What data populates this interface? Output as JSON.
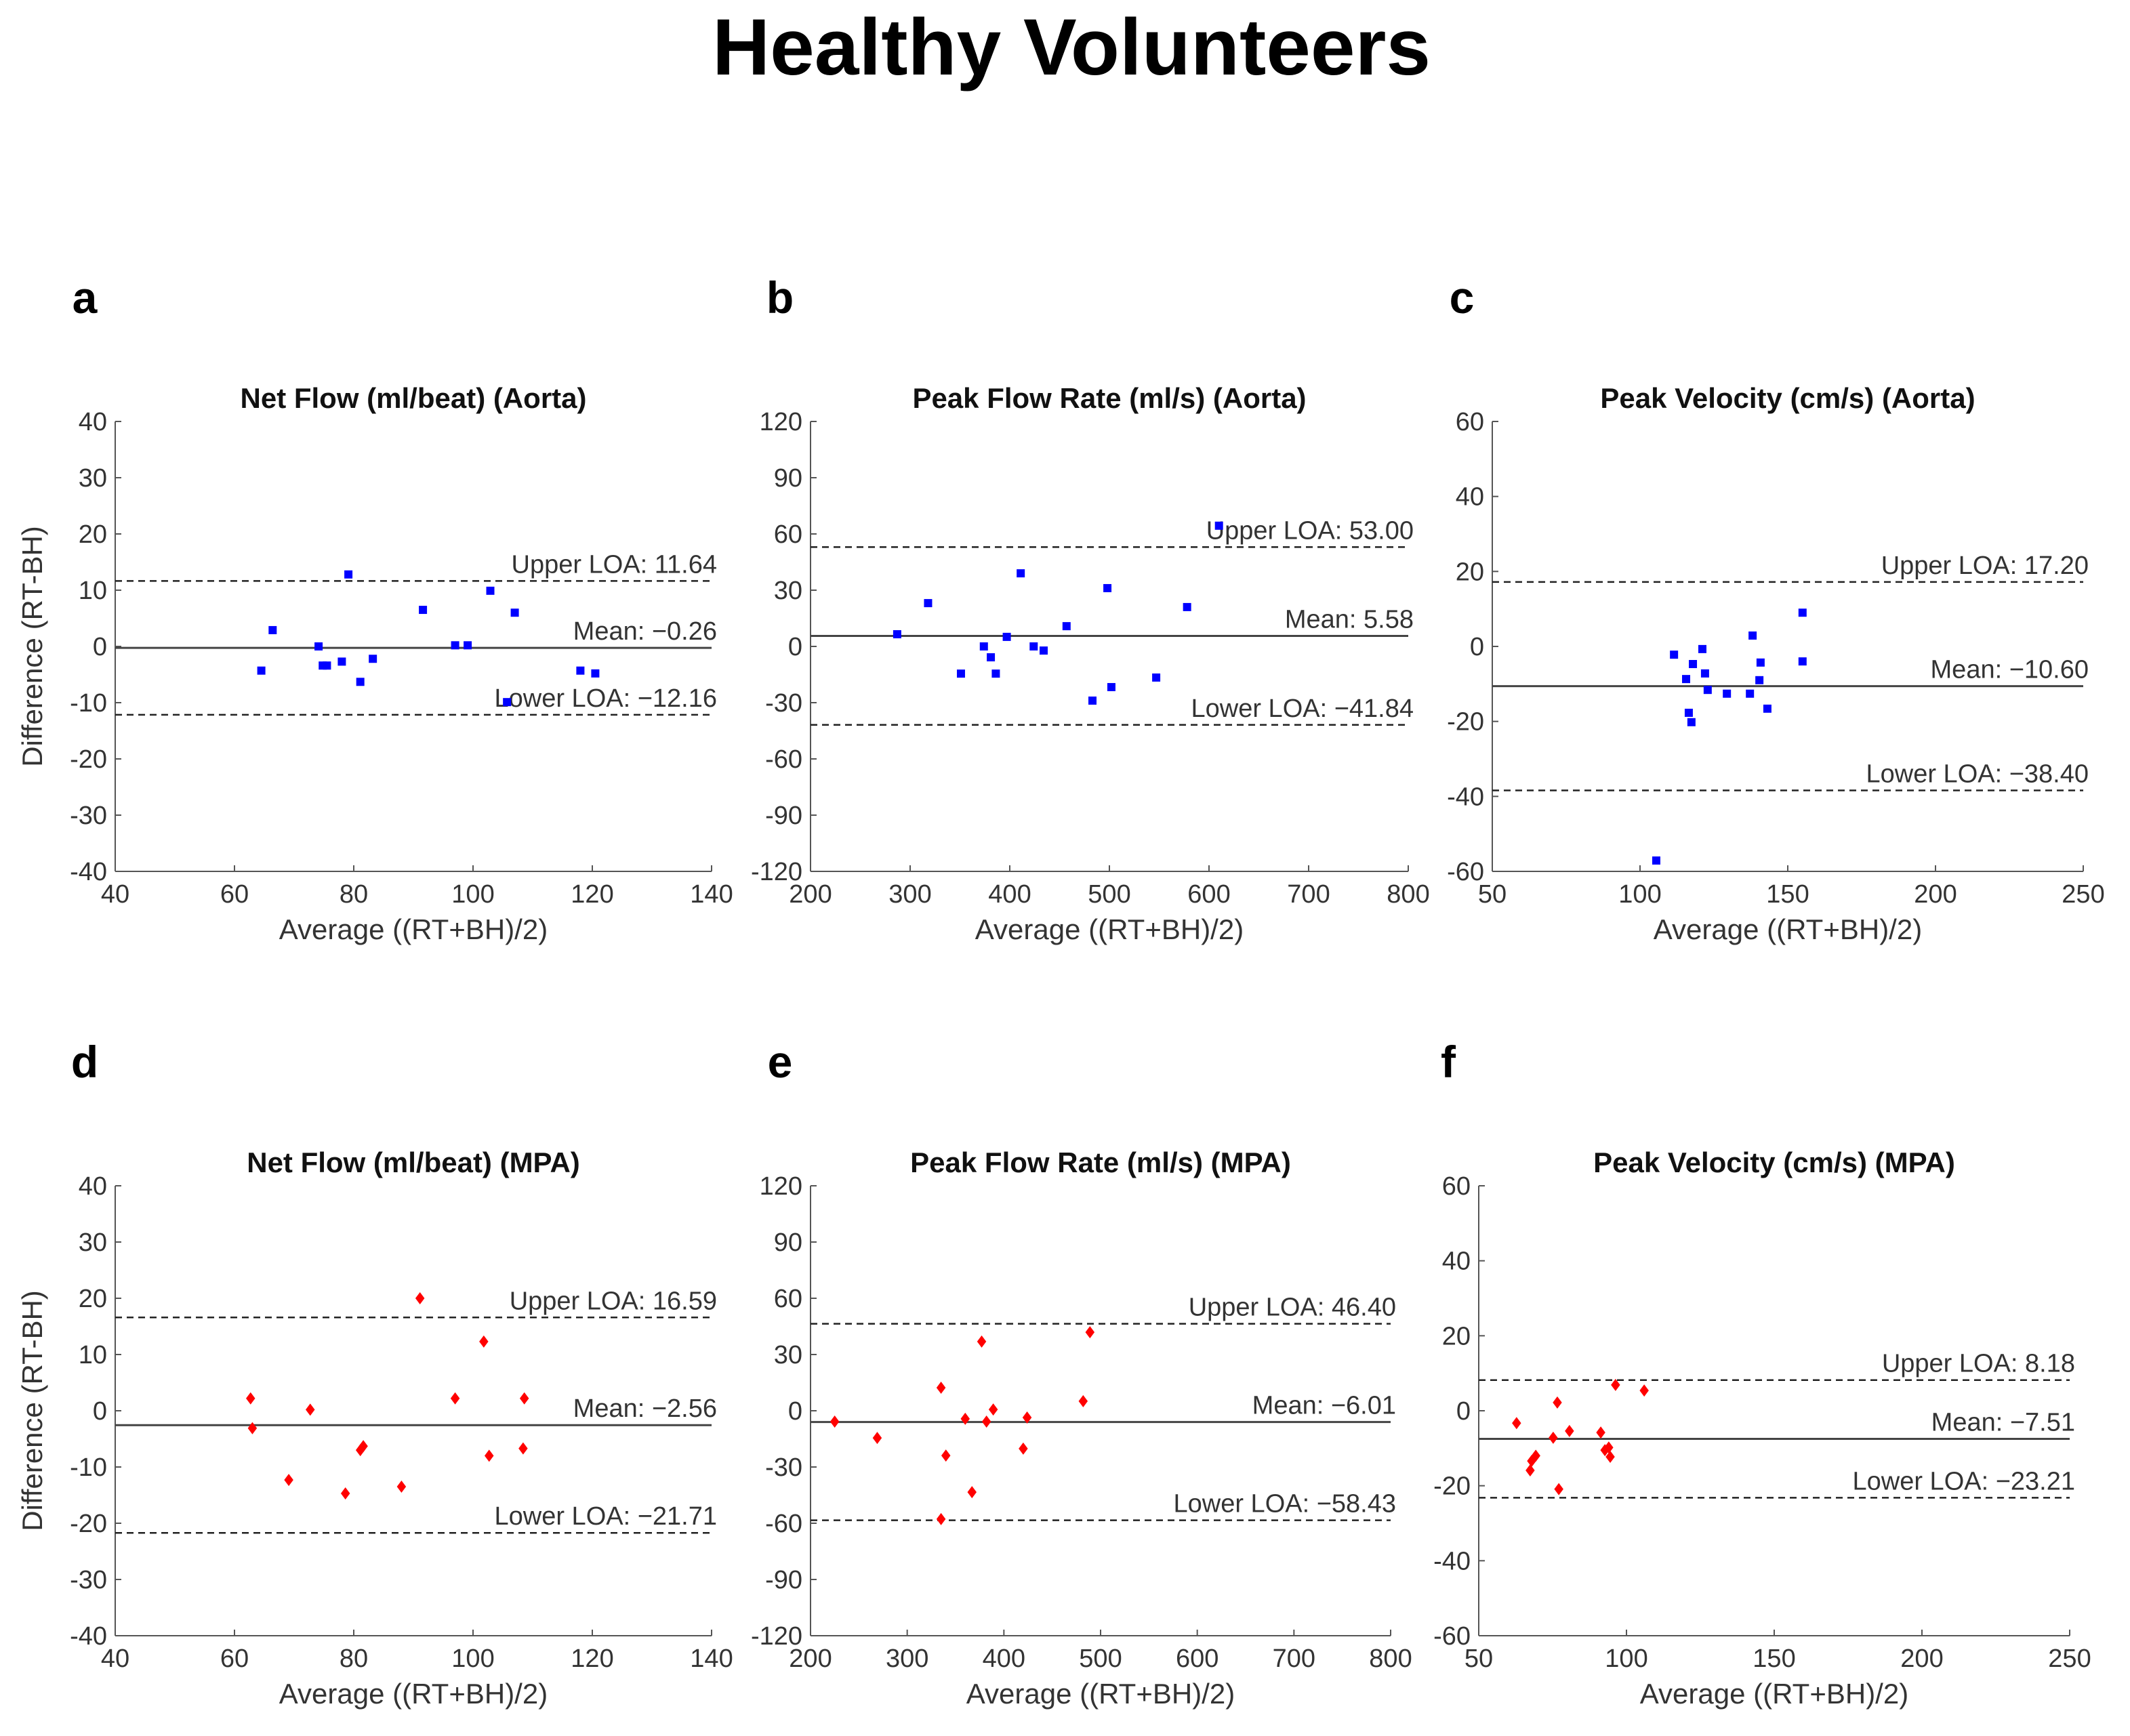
{
  "title": "Healthy Volunteers",
  "chart_data": [
    {
      "type": "scatter",
      "panel": "a",
      "title": "Net Flow (ml/beat) (Aorta)",
      "xlabel": "Average ((RT+BH)/2)",
      "ylabel": "Difference (RT-BH)",
      "x": [
        64.5,
        66.4,
        74.1,
        74.8,
        75.5,
        78.0,
        79.1,
        81.1,
        83.2,
        91.6,
        97.0,
        99.1,
        102.9,
        107.0,
        105.7,
        118.0,
        120.5
      ],
      "values": [
        -4.3,
        2.9,
        0,
        -3.4,
        -3.4,
        -2.7,
        12.8,
        -6.3,
        -2.2,
        6.5,
        0.2,
        0.2,
        9.9,
        6.0,
        -9.9,
        -4.3,
        -4.8
      ],
      "color": "#0000ff",
      "marker": "square",
      "xlim": [
        40,
        140
      ],
      "xticks": [
        40,
        60,
        80,
        100,
        120,
        140
      ],
      "ylim": [
        -40,
        40
      ],
      "yticks": [
        -40,
        -30,
        -20,
        -10,
        0,
        10,
        20,
        30,
        40
      ],
      "reference_lines": [
        {
          "label": "Upper LOA: 11.64",
          "value": 11.64,
          "style": "dashed"
        },
        {
          "label": "Mean: −0.26",
          "value": -0.26,
          "style": "solid"
        },
        {
          "label": "Lower LOA: −12.16",
          "value": -12.16,
          "style": "dashed"
        }
      ]
    },
    {
      "type": "scatter",
      "panel": "b",
      "title": "Peak Flow Rate (ml/s) (Aorta)",
      "xlabel": "Average ((RT+BH)/2)",
      "x": [
        287,
        318,
        351,
        374,
        381,
        386,
        397,
        411,
        424,
        434,
        457,
        483,
        498,
        502,
        547,
        578,
        610
      ],
      "values": [
        6.5,
        23.1,
        -14.5,
        0,
        -5.8,
        -14.5,
        5.1,
        39.0,
        0,
        -2.2,
        10.8,
        -28.9,
        31.1,
        -21.7,
        -16.6,
        21.0,
        64.4
      ],
      "color": "#0000ff",
      "marker": "square",
      "xlim": [
        200,
        800
      ],
      "xticks": [
        200,
        300,
        400,
        500,
        600,
        700,
        800
      ],
      "ylim": [
        -120,
        120
      ],
      "yticks": [
        -120,
        -90,
        -60,
        -30,
        0,
        30,
        60,
        90,
        120
      ],
      "reference_lines": [
        {
          "label": "Upper LOA: 53.00",
          "value": 53.0,
          "style": "dashed"
        },
        {
          "label": "Mean: 5.58",
          "value": 5.58,
          "style": "solid"
        },
        {
          "label": "Lower LOA: −41.84",
          "value": -41.84,
          "style": "dashed"
        }
      ]
    },
    {
      "type": "scatter",
      "panel": "c",
      "title": "Peak Velocity (cm/s) (Aorta)",
      "xlabel": "Average ((RT+BH)/2)",
      "x": [
        105.5,
        111.5,
        115.6,
        116.5,
        117.4,
        117.9,
        121.1,
        122.0,
        122.9,
        129.4,
        137.2,
        138.1,
        140.4,
        140.8,
        143.1,
        155.0,
        155.0
      ],
      "values": [
        -57.1,
        -2.2,
        -8.7,
        -17.7,
        -20.2,
        -4.7,
        -0.7,
        -7.2,
        -11.6,
        -12.6,
        -12.6,
        2.9,
        -9.0,
        -4.3,
        -16.6,
        9.0,
        -4.0
      ],
      "color": "#0000ff",
      "marker": "square",
      "xlim": [
        50,
        250
      ],
      "xticks": [
        50,
        100,
        150,
        200,
        250
      ],
      "ylim": [
        -60,
        60
      ],
      "yticks": [
        -60,
        -40,
        -20,
        0,
        20,
        40,
        60
      ],
      "reference_lines": [
        {
          "label": "Upper LOA: 17.20",
          "value": 17.2,
          "style": "dashed"
        },
        {
          "label": "Mean: −10.60",
          "value": -10.6,
          "style": "solid"
        },
        {
          "label": "Lower LOA: −38.40",
          "value": -38.4,
          "style": "dashed"
        }
      ]
    },
    {
      "type": "scatter",
      "panel": "d",
      "title": "Net Flow (ml/beat) (MPA)",
      "xlabel": "Average ((RT+BH)/2)",
      "ylabel": "Difference (RT-BH)",
      "x": [
        62.7,
        63.0,
        69.1,
        72.7,
        78.6,
        81.1,
        81.6,
        88.0,
        91.1,
        97.0,
        101.8,
        102.7,
        108.6,
        108.4
      ],
      "values": [
        2.2,
        -3.1,
        -12.3,
        0.2,
        -14.7,
        -7.0,
        -6.3,
        -13.5,
        20.0,
        2.2,
        12.3,
        -8.0,
        2.2,
        -6.7
      ],
      "color": "#ff0000",
      "marker": "diamond",
      "xlim": [
        40,
        140
      ],
      "xticks": [
        40,
        60,
        80,
        100,
        120,
        140
      ],
      "ylim": [
        -40,
        40
      ],
      "yticks": [
        -40,
        -30,
        -20,
        -10,
        0,
        10,
        20,
        30,
        40
      ],
      "reference_lines": [
        {
          "label": "Upper LOA: 16.59",
          "value": 16.59,
          "style": "dashed"
        },
        {
          "label": "Mean: −2.56",
          "value": -2.56,
          "style": "solid"
        },
        {
          "label": "Lower LOA: −21.71",
          "value": -21.71,
          "style": "dashed"
        }
      ]
    },
    {
      "type": "scatter",
      "panel": "e",
      "title": "Peak Flow Rate (ml/s) (MPA)",
      "xlabel": "Average ((RT+BH)/2)",
      "x": [
        225,
        269,
        335,
        340,
        360,
        367,
        377,
        382,
        389,
        420,
        424,
        482,
        489,
        335
      ],
      "values": [
        -5.8,
        -14.5,
        12.3,
        -23.9,
        -4.3,
        -43.4,
        36.9,
        -5.8,
        0.7,
        -20.2,
        -3.6,
        5.1,
        41.9,
        -57.8
      ],
      "color": "#ff0000",
      "marker": "diamond",
      "xlim": [
        200,
        800
      ],
      "xticks": [
        200,
        300,
        400,
        500,
        600,
        700,
        800
      ],
      "ylim": [
        -120,
        120
      ],
      "yticks": [
        -120,
        -90,
        -60,
        -30,
        0,
        30,
        60,
        90,
        120
      ],
      "reference_lines": [
        {
          "label": "Upper LOA: 46.40",
          "value": 46.4,
          "style": "dashed"
        },
        {
          "label": "Mean: −6.01",
          "value": -6.01,
          "style": "solid"
        },
        {
          "label": "Lower LOA: −58.43",
          "value": -58.43,
          "style": "dashed"
        }
      ]
    },
    {
      "type": "scatter",
      "panel": "f",
      "title": "Peak Velocity (cm/s) (MPA)",
      "xlabel": "Average ((RT+BH)/2)",
      "x": [
        62.8,
        67.4,
        67.9,
        69.3,
        75.2,
        76.6,
        77.1,
        80.7,
        91.3,
        92.7,
        94.0,
        94.5,
        96.3,
        106.0
      ],
      "values": [
        -3.3,
        -15.9,
        -13.4,
        -12.0,
        -7.2,
        2.2,
        -20.9,
        -5.4,
        -5.8,
        -10.5,
        -9.8,
        -12.3,
        6.9,
        5.4
      ],
      "color": "#ff0000",
      "marker": "diamond",
      "xlim": [
        50,
        250
      ],
      "xticks": [
        50,
        100,
        150,
        200,
        250
      ],
      "ylim": [
        -60,
        60
      ],
      "yticks": [
        -60,
        -40,
        -20,
        0,
        20,
        40,
        60
      ],
      "reference_lines": [
        {
          "label": "Upper LOA: 8.18",
          "value": 8.18,
          "style": "dashed"
        },
        {
          "label": "Mean: −7.51",
          "value": -7.51,
          "style": "solid"
        },
        {
          "label": "Lower LOA: −23.21",
          "value": -23.21,
          "style": "dashed"
        }
      ]
    }
  ]
}
